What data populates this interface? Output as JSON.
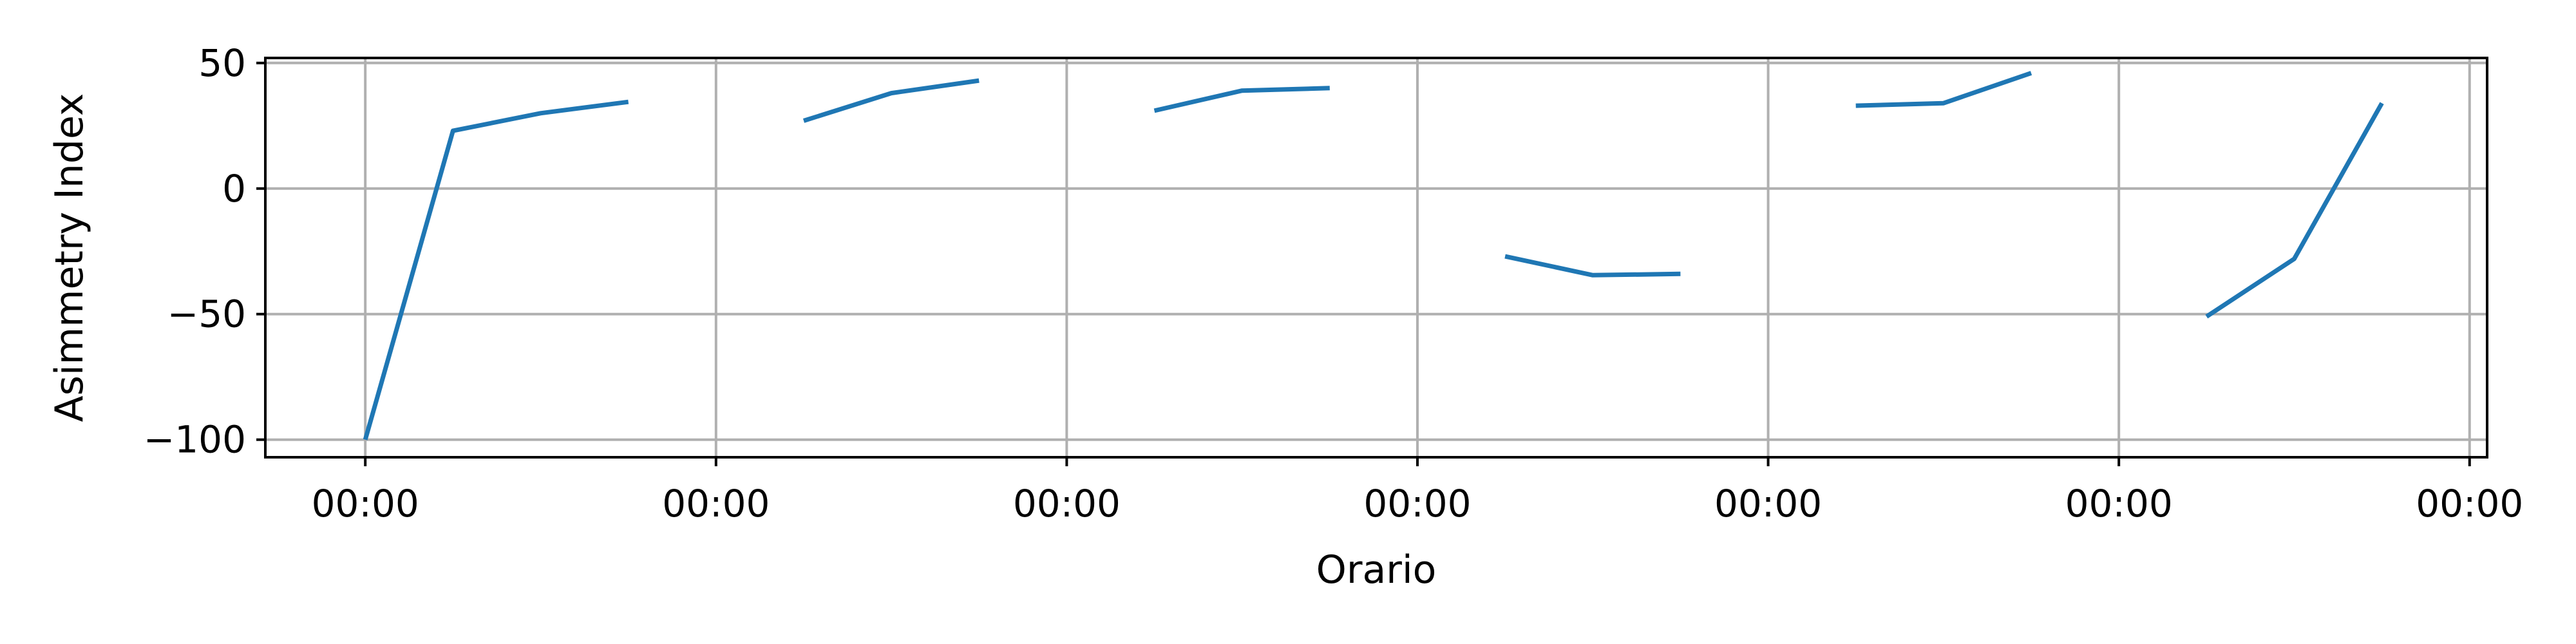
{
  "chart_data": {
    "type": "line",
    "title": "",
    "xlabel": "Orario",
    "ylabel": "Asimmetry Index",
    "ylim": [
      -107,
      52
    ],
    "xlim": [
      -0.57,
      12.1
    ],
    "grid": true,
    "legend": "none",
    "line_color": "#1f77b4",
    "grid_color": "#b0b0b0",
    "x_ticks": [
      {
        "value": 0,
        "label": "00:00"
      },
      {
        "value": 2,
        "label": "00:00"
      },
      {
        "value": 4,
        "label": "00:00"
      },
      {
        "value": 6,
        "label": "00:00"
      },
      {
        "value": 8,
        "label": "00:00"
      },
      {
        "value": 10,
        "label": "00:00"
      },
      {
        "value": 12,
        "label": "00:00"
      }
    ],
    "y_ticks": [
      {
        "value": 50,
        "label": "50"
      },
      {
        "value": 0,
        "label": "0"
      },
      {
        "value": -50,
        "label": "−50"
      },
      {
        "value": -100,
        "label": "−100"
      }
    ],
    "series": [
      {
        "segments": [
          [
            [
              0,
              -100
            ],
            [
              0.5,
              23
            ],
            [
              1,
              30
            ],
            [
              1.5,
              34.5
            ]
          ],
          [
            [
              2.5,
              27
            ],
            [
              3,
              38
            ],
            [
              3.5,
              43
            ]
          ],
          [
            [
              4.5,
              31
            ],
            [
              5,
              39
            ],
            [
              5.5,
              40
            ]
          ],
          [
            [
              6.5,
              -27
            ],
            [
              7,
              -34.5
            ],
            [
              7.5,
              -34
            ]
          ],
          [
            [
              8.5,
              33
            ],
            [
              9,
              34
            ],
            [
              9.5,
              46
            ]
          ],
          [
            [
              10.5,
              -51
            ],
            [
              11,
              -28
            ],
            [
              11.5,
              34
            ]
          ]
        ]
      }
    ]
  }
}
